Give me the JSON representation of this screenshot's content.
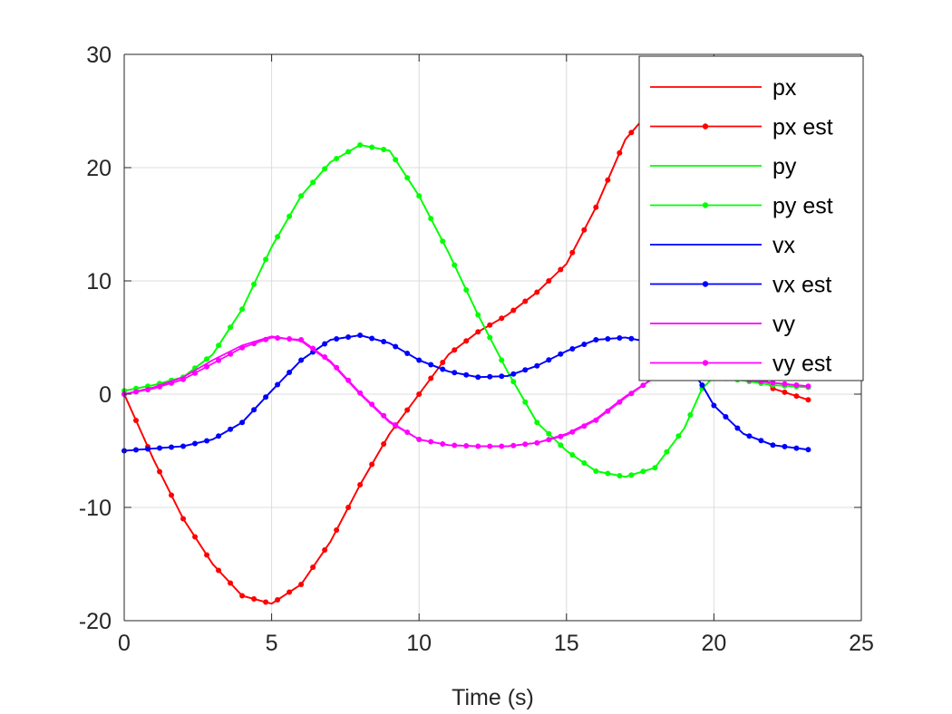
{
  "chart_data": {
    "type": "line",
    "title": "",
    "xlabel": "Time (s)",
    "ylabel": "",
    "xlim": [
      0,
      25
    ],
    "ylim": [
      -20,
      30
    ],
    "xticks": [
      0,
      5,
      10,
      15,
      20,
      25
    ],
    "yticks": [
      -20,
      -10,
      0,
      10,
      20,
      30
    ],
    "xtick_labels": [
      "0",
      "5",
      "10",
      "15",
      "20",
      "25"
    ],
    "ytick_labels": [
      "-20",
      "-10",
      "0",
      "10",
      "20",
      "30"
    ],
    "grid": true,
    "legend_position": "top-right",
    "series": [
      {
        "name": "px",
        "color": "#ff0000",
        "marker": false,
        "x": [
          0,
          1,
          2,
          3,
          4,
          5,
          6,
          7,
          8,
          9,
          10,
          11,
          12,
          13,
          14,
          15,
          16,
          17,
          18,
          19,
          20,
          21,
          22,
          23.2
        ],
        "y": [
          0,
          -5.8,
          -11,
          -15,
          -17.8,
          -18.5,
          -16.8,
          -13,
          -8,
          -3.5,
          0,
          3.5,
          5.5,
          7,
          9,
          11.5,
          16.5,
          22.5,
          25.5,
          19,
          10,
          3.5,
          0.5,
          -0.5
        ]
      },
      {
        "name": "px est",
        "color": "#ff0000",
        "marker": true,
        "x": [
          0,
          1,
          2,
          3,
          4,
          5,
          6,
          7,
          8,
          9,
          10,
          11,
          12,
          13,
          14,
          15,
          16,
          17,
          18,
          19,
          20,
          21,
          22,
          23.2
        ],
        "y": [
          0,
          -5.8,
          -11,
          -15,
          -17.8,
          -18.5,
          -16.8,
          -13,
          -8,
          -3.5,
          0,
          3.5,
          5.5,
          7,
          9,
          11.5,
          16.5,
          22.5,
          25.5,
          19,
          10,
          3.5,
          0.5,
          -0.5
        ]
      },
      {
        "name": "py",
        "color": "#00ff00",
        "marker": false,
        "x": [
          0,
          1,
          2,
          3,
          4,
          5,
          6,
          7,
          8,
          9,
          10,
          11,
          12,
          13,
          14,
          15,
          16,
          17,
          18,
          19,
          19.6,
          20,
          21,
          22,
          23.2
        ],
        "y": [
          0.3,
          0.8,
          1.5,
          3.5,
          7.5,
          13,
          17.5,
          20.5,
          22,
          21.5,
          17.5,
          12.5,
          7,
          2,
          -2.5,
          -5,
          -6.8,
          -7.3,
          -6.5,
          -3,
          0.5,
          1.5,
          1.2,
          0.8,
          0.6
        ]
      },
      {
        "name": "py est",
        "color": "#00ff00",
        "marker": true,
        "x": [
          0,
          1,
          2,
          3,
          4,
          5,
          6,
          7,
          8,
          9,
          10,
          11,
          12,
          13,
          14,
          15,
          16,
          17,
          18,
          19,
          19.6,
          20,
          21,
          22,
          23.2
        ],
        "y": [
          0.3,
          0.8,
          1.5,
          3.5,
          7.5,
          13,
          17.5,
          20.5,
          22,
          21.5,
          17.5,
          12.5,
          7,
          2,
          -2.5,
          -5,
          -6.8,
          -7.3,
          -6.5,
          -3,
          0.5,
          1.5,
          1.2,
          0.8,
          0.6
        ]
      },
      {
        "name": "vx",
        "color": "#0000ff",
        "marker": false,
        "x": [
          0,
          1,
          2,
          3,
          4,
          5,
          6,
          7,
          8,
          9,
          10,
          11,
          12,
          13,
          14,
          15,
          16,
          17,
          18,
          19,
          19.6,
          20,
          21,
          22,
          23.2
        ],
        "y": [
          -5,
          -4.8,
          -4.6,
          -4,
          -2.5,
          0.3,
          3,
          4.8,
          5.2,
          4.5,
          3,
          2,
          1.5,
          1.6,
          2.5,
          3.8,
          4.8,
          5,
          4.5,
          3,
          0.8,
          -1,
          -3.5,
          -4.5,
          -4.9
        ]
      },
      {
        "name": "vx est",
        "color": "#0000ff",
        "marker": true,
        "x": [
          0,
          1,
          2,
          3,
          4,
          5,
          6,
          7,
          8,
          9,
          10,
          11,
          12,
          13,
          14,
          15,
          16,
          17,
          18,
          19,
          19.6,
          20,
          21,
          22,
          23.2
        ],
        "y": [
          -5,
          -4.8,
          -4.6,
          -4,
          -2.5,
          0.3,
          3,
          4.8,
          5.2,
          4.5,
          3,
          2,
          1.5,
          1.6,
          2.5,
          3.8,
          4.8,
          5,
          4.5,
          3,
          0.8,
          -1,
          -3.5,
          -4.5,
          -4.9
        ]
      },
      {
        "name": "vy",
        "color": "#ff00ff",
        "marker": false,
        "x": [
          0,
          1,
          2,
          3,
          4,
          5,
          6,
          7,
          8,
          9,
          10,
          11,
          12,
          13,
          14,
          15,
          16,
          17,
          18,
          19,
          20,
          21,
          22,
          23.2
        ],
        "y": [
          0,
          0.6,
          1.5,
          3,
          4.3,
          5.1,
          4.7,
          2.8,
          0,
          -2.5,
          -4,
          -4.5,
          -4.6,
          -4.6,
          -4.3,
          -3.5,
          -2.2,
          -0.2,
          1.5,
          2.5,
          2,
          1.3,
          1,
          0.7
        ]
      },
      {
        "name": "vy est",
        "color": "#ff00ff",
        "marker": true,
        "x": [
          0,
          1,
          2,
          3,
          4,
          5,
          6,
          7,
          8,
          9,
          10,
          11,
          12,
          13,
          14,
          15,
          16,
          17,
          18,
          19,
          20,
          21,
          22,
          23.2
        ],
        "y": [
          0,
          0.5,
          1.3,
          2.7,
          4.1,
          5,
          4.8,
          2.9,
          0.1,
          -2.4,
          -4,
          -4.5,
          -4.6,
          -4.6,
          -4.3,
          -3.6,
          -2.3,
          -0.3,
          1.5,
          2.5,
          2,
          1.3,
          1,
          0.7
        ]
      }
    ]
  }
}
